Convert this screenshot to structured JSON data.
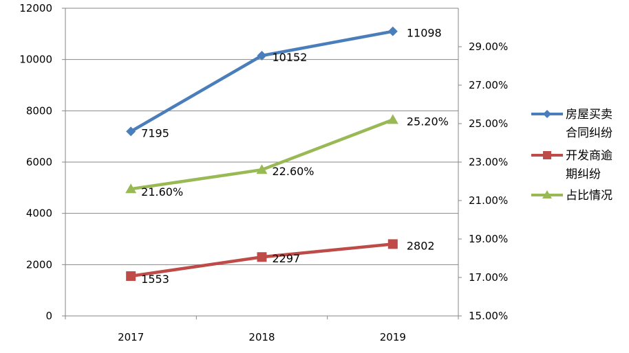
{
  "chart_data": {
    "type": "line",
    "categories": [
      "2017",
      "2018",
      "2019"
    ],
    "left_axis": {
      "min": 0,
      "max": 12000,
      "step": 2000,
      "tick_labels": [
        "0",
        "2000",
        "4000",
        "6000",
        "8000",
        "10000",
        "12000"
      ]
    },
    "right_axis": {
      "min": 15,
      "max": 31,
      "step": 2,
      "tick_labels": [
        "15.00%",
        "17.00%",
        "19.00%",
        "21.00%",
        "23.00%",
        "25.00%",
        "27.00%",
        "29.00%"
      ]
    },
    "grid": true,
    "legend_position": "right",
    "series": [
      {
        "name": "房屋买卖合同纠纷",
        "legend_lines": [
          "房屋买卖",
          "合同纠纷"
        ],
        "axis": "left",
        "color": "#4a7ebb",
        "marker": "diamond",
        "values": [
          7195,
          10152,
          11098
        ],
        "labels": [
          "7195",
          "10152",
          "11098"
        ]
      },
      {
        "name": "开发商逾期纠纷",
        "legend_lines": [
          "开发商逾",
          "期纠纷"
        ],
        "axis": "left",
        "color": "#be4b48",
        "marker": "square",
        "values": [
          1553,
          2297,
          2802
        ],
        "labels": [
          "1553",
          "2297",
          "2802"
        ]
      },
      {
        "name": "占比情况",
        "legend_lines": [
          "占比情况"
        ],
        "axis": "right",
        "color": "#98b954",
        "marker": "triangle",
        "values": [
          21.6,
          22.6,
          25.2
        ],
        "labels": [
          "21.60%",
          "22.60%",
          "25.20%"
        ]
      }
    ]
  }
}
